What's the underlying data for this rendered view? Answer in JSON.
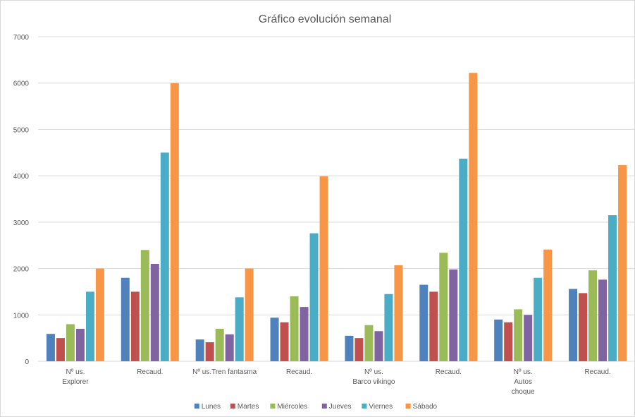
{
  "chart_data": {
    "type": "bar",
    "title": "Gráfico evolución semanal",
    "xlabel": "",
    "ylabel": "",
    "ylim": [
      0,
      7000
    ],
    "yticks": [
      0,
      1000,
      2000,
      3000,
      4000,
      5000,
      6000,
      7000
    ],
    "grid": true,
    "legend_position": "bottom",
    "categories": [
      [
        "Nº us.",
        "Explorer"
      ],
      [
        "Recaud."
      ],
      [
        "Nº us.Tren fantasma"
      ],
      [
        "Recaud."
      ],
      [
        "Nº us.",
        "Barco vikingo"
      ],
      [
        "Recaud."
      ],
      [
        "Nº us.",
        "Autos",
        "choque"
      ],
      [
        "Recaud."
      ]
    ],
    "series": [
      {
        "name": "Lunes",
        "color": "#4f81bd",
        "values": [
          590,
          1800,
          470,
          940,
          550,
          1650,
          900,
          1560
        ]
      },
      {
        "name": "Martes",
        "color": "#c0504d",
        "values": [
          500,
          1500,
          410,
          840,
          500,
          1500,
          840,
          1470
        ]
      },
      {
        "name": "Miércoles",
        "color": "#9bbb59",
        "values": [
          800,
          2400,
          700,
          1400,
          780,
          2340,
          1120,
          1960
        ]
      },
      {
        "name": "Jueves",
        "color": "#8064a2",
        "values": [
          700,
          2100,
          580,
          1170,
          650,
          1980,
          1000,
          1760
        ]
      },
      {
        "name": "Viernes",
        "color": "#4bacc6",
        "values": [
          1500,
          4500,
          1380,
          2760,
          1450,
          4370,
          1800,
          3150
        ]
      },
      {
        "name": "Sábado",
        "color": "#f79646",
        "values": [
          2000,
          6000,
          2000,
          3990,
          2070,
          6220,
          2410,
          4230
        ]
      }
    ]
  }
}
